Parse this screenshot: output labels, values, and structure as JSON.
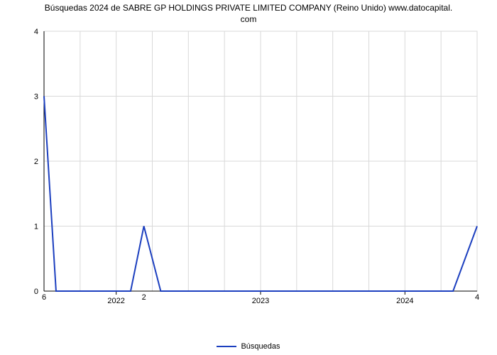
{
  "title_line1": "Búsquedas 2024 de SABRE GP HOLDINGS PRIVATE LIMITED COMPANY (Reino Unido) www.datocapital.",
  "title_line2": "com",
  "chart": {
    "type": "line",
    "background_color": "#ffffff",
    "grid_color": "#d9d9d9",
    "axis_color": "#000000",
    "line_color": "#1c3fbf",
    "line_width": 2,
    "ylim_min": 0,
    "ylim_max": 4,
    "yticks": [
      0,
      1,
      2,
      3,
      4
    ],
    "xlim_min": 0,
    "xlim_max": 36,
    "x_grid_positions": [
      0,
      3,
      6,
      9,
      12,
      15,
      18,
      21,
      24,
      27,
      30,
      33,
      36
    ],
    "x_major_ticks": [
      {
        "pos": 6,
        "label": "2022"
      },
      {
        "pos": 18,
        "label": "2023"
      },
      {
        "pos": 30,
        "label": "2024"
      }
    ],
    "below_labels": [
      {
        "x": 0,
        "text": "6"
      },
      {
        "x": 8.3,
        "text": "2"
      },
      {
        "x": 36,
        "text": "4"
      }
    ],
    "series": {
      "name": "Búsquedas",
      "points": [
        {
          "x": 0,
          "y": 3.0
        },
        {
          "x": 1.0,
          "y": 0.0
        },
        {
          "x": 7.2,
          "y": 0.0
        },
        {
          "x": 8.3,
          "y": 1.0
        },
        {
          "x": 9.7,
          "y": 0.0
        },
        {
          "x": 34.0,
          "y": 0.0
        },
        {
          "x": 36.0,
          "y": 1.0
        }
      ]
    },
    "legend_label": "Búsquedas"
  }
}
